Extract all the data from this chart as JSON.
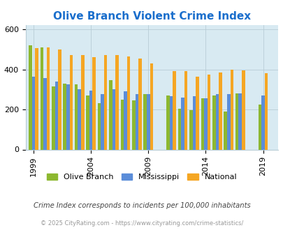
{
  "title": "Olive Branch Violent Crime Index",
  "years": [
    1999,
    2000,
    2001,
    2002,
    2003,
    2004,
    2005,
    2006,
    2007,
    2008,
    2009,
    2011,
    2012,
    2013,
    2014,
    2015,
    2016,
    2017,
    2019
  ],
  "olive_branch": [
    520,
    510,
    315,
    330,
    325,
    270,
    230,
    345,
    250,
    245,
    275,
    270,
    205,
    195,
    255,
    270,
    190,
    280,
    225
  ],
  "mississippi": [
    365,
    355,
    340,
    325,
    300,
    295,
    275,
    300,
    290,
    275,
    275,
    265,
    260,
    265,
    255,
    275,
    275,
    280,
    270
  ],
  "national": [
    505,
    510,
    500,
    470,
    470,
    460,
    470,
    470,
    465,
    455,
    430,
    390,
    390,
    365,
    375,
    385,
    400,
    395,
    380
  ],
  "colors": {
    "olive_branch": "#8db830",
    "mississippi": "#5b8dd9",
    "national": "#f5a623"
  },
  "bg_color": "#d8eaf2",
  "title_color": "#1a6ecc",
  "title_fontsize": 11,
  "note": "Crime Index corresponds to incidents per 100,000 inhabitants",
  "footer": "© 2025 CityRating.com - https://www.cityrating.com/crime-statistics/",
  "ylim": [
    0,
    620
  ],
  "bar_width": 0.28,
  "xtick_years": [
    1999,
    2004,
    2009,
    2014,
    2019
  ]
}
